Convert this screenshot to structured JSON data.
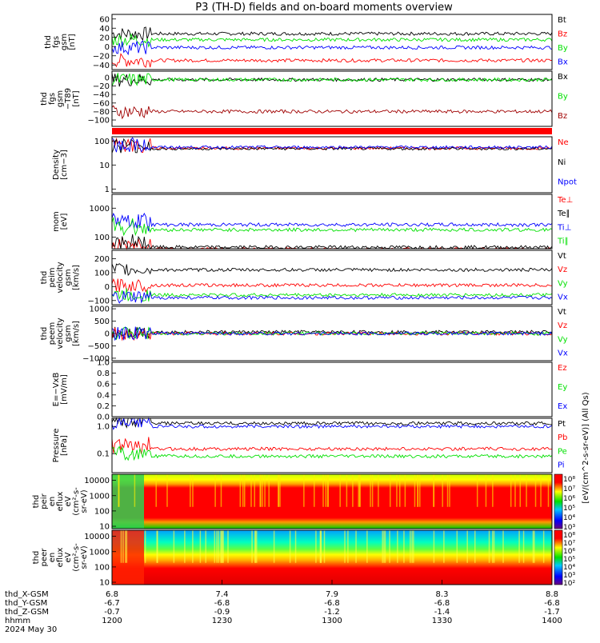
{
  "title": "P3 (TH-D) fields and on-board moments overview",
  "time_axis": {
    "tick_times": [
      "1200",
      "1230",
      "1300",
      "1330",
      "1400"
    ],
    "rows": [
      {
        "label": "thd_X-GSM",
        "values": [
          "6.8",
          "7.4",
          "7.9",
          "8.3",
          "8.8"
        ]
      },
      {
        "label": "thd_Y-GSM",
        "values": [
          "-6.7",
          "-6.8",
          "-6.8",
          "-6.8",
          "-6.8"
        ]
      },
      {
        "label": "thd_Z-GSM",
        "values": [
          "-0.7",
          "-0.9",
          "-1.2",
          "-1.4",
          "-1.7"
        ]
      },
      {
        "label": "hhmm",
        "values": [
          "1200",
          "1230",
          "1300",
          "1330",
          "1400"
        ]
      }
    ],
    "date": "2024 May 30"
  },
  "colors": {
    "black": "#000000",
    "red": "#ff0000",
    "green": "#00e000",
    "blue": "#0000ff",
    "darkred": "#a00000"
  },
  "colorbar_label": "[eV/(cm^2-s-sr-eV)] (All Qs)",
  "chart_data": [
    {
      "type": "line",
      "panel": "fgs",
      "ylabel": [
        "thd",
        "fgs",
        "gsm",
        "[nT]"
      ],
      "yticks": [
        "60",
        "40",
        "20",
        "0",
        "−20",
        "−40"
      ],
      "ylim": [
        -50,
        70
      ],
      "series": [
        {
          "name": "Bt",
          "color": "#000000",
          "steady": 28
        },
        {
          "name": "Bz",
          "color": "#ff0000",
          "steady": -30
        },
        {
          "name": "By",
          "color": "#00e000",
          "steady": 15
        },
        {
          "name": "Bx",
          "color": "#0000ff",
          "steady": -2
        }
      ]
    },
    {
      "type": "line",
      "panel": "fgs-t89",
      "ylabel": [
        "thd",
        "fgs",
        "gsm",
        "−T89",
        "[nT]"
      ],
      "yticks": [
        "0",
        "−20",
        "−40",
        "−60",
        "−80",
        "−100"
      ],
      "ylim": [
        -115,
        15
      ],
      "series": [
        {
          "name": "Bx",
          "color": "#000000",
          "steady": -5
        },
        {
          "name": "By",
          "color": "#00e000",
          "steady": -5
        },
        {
          "name": "Bz",
          "color": "#a00000",
          "steady": -80
        }
      ]
    },
    {
      "type": "line",
      "panel": "density",
      "ylabel": [
        "Density",
        "[cm−3]"
      ],
      "yticks": [
        "100",
        "10",
        "1"
      ],
      "log": true,
      "ylim": [
        0.7,
        150
      ],
      "series": [
        {
          "name": "Ne",
          "color": "#ff0000",
          "steady": 50
        },
        {
          "name": "Ni",
          "color": "#000000",
          "steady": 48
        },
        {
          "name": "Npot",
          "color": "#0000ff",
          "steady": 55
        }
      ]
    },
    {
      "type": "line",
      "panel": "temperature",
      "ylabel": [
        "mom",
        "[eV]"
      ],
      "yticks": [
        "1000",
        "100"
      ],
      "log": true,
      "ylim": [
        40,
        3000
      ],
      "series": [
        {
          "name": "Te⊥",
          "color": "#ff0000",
          "steady": 38
        },
        {
          "name": "Te∥",
          "color": "#000000",
          "steady": 45
        },
        {
          "name": "Ti⊥",
          "color": "#0000ff",
          "steady": 270
        },
        {
          "name": "Ti∥",
          "color": "#00e000",
          "steady": 180
        }
      ]
    },
    {
      "type": "line",
      "panel": "peim",
      "ylabel": [
        "thd",
        "peim",
        "velocity",
        "gsm",
        "[km/s]"
      ],
      "yticks": [
        "200",
        "100",
        "0",
        "−100"
      ],
      "ylim": [
        -130,
        260
      ],
      "series": [
        {
          "name": "Vt",
          "color": "#000000",
          "steady": 120
        },
        {
          "name": "Vz",
          "color": "#ff0000",
          "steady": 10
        },
        {
          "name": "Vy",
          "color": "#00e000",
          "steady": -60
        },
        {
          "name": "Vx",
          "color": "#0000ff",
          "steady": -80
        }
      ]
    },
    {
      "type": "line",
      "panel": "peem",
      "ylabel": [
        "thd",
        "peem",
        "velocity",
        "gsm",
        "[km/s]"
      ],
      "yticks": [
        "1000",
        "500",
        "0",
        "−500",
        "−1000"
      ],
      "ylim": [
        -1100,
        1100
      ],
      "series": [
        {
          "name": "Vt",
          "color": "#000000",
          "steady": 60
        },
        {
          "name": "Vz",
          "color": "#ff0000",
          "steady": 0
        },
        {
          "name": "Vy",
          "color": "#00e000",
          "steady": 0
        },
        {
          "name": "Vx",
          "color": "#0000ff",
          "steady": 0
        }
      ]
    },
    {
      "type": "line",
      "panel": "efield",
      "ylabel": [
        "E=−VxB",
        "[mV/m]"
      ],
      "yticks": [
        "1.0",
        "0.8",
        "0.6",
        "0.4",
        "0.2",
        "0.0"
      ],
      "ylim": [
        0,
        1
      ],
      "series": [
        {
          "name": "Ez",
          "color": "#ff0000"
        },
        {
          "name": "Ey",
          "color": "#00e000"
        },
        {
          "name": "Ex",
          "color": "#0000ff"
        }
      ]
    },
    {
      "type": "line",
      "panel": "pressure",
      "ylabel": [
        "Pressure",
        "[nPa]"
      ],
      "yticks": [
        "1.0",
        "0.1"
      ],
      "log": true,
      "ylim": [
        0.02,
        2
      ],
      "series": [
        {
          "name": "Pt",
          "color": "#000000",
          "steady": 1.3
        },
        {
          "name": "Pb",
          "color": "#ff0000",
          "steady": 0.15
        },
        {
          "name": "Pe",
          "color": "#00e000",
          "steady": 0.08
        },
        {
          "name": "Pi",
          "color": "#0000ff",
          "steady": 1.0
        }
      ]
    },
    {
      "type": "heatmap",
      "panel": "peir",
      "ylabel": [
        "thd",
        "peir",
        "en",
        "eflux",
        "eV",
        "(cm²-s-",
        "sr-eV)"
      ],
      "yticks": [
        "10000",
        "1000",
        "100",
        "10"
      ],
      "log": true,
      "ylim": [
        7,
        25000
      ],
      "colorbar_ticks": [
        "10⁸",
        "10⁷",
        "10⁶",
        "10⁵",
        "10⁴",
        "10³"
      ]
    },
    {
      "type": "heatmap",
      "panel": "peer",
      "ylabel": [
        "thd",
        "peer",
        "en",
        "eflux",
        "eV",
        "(cm²-s-",
        "sr-eV)"
      ],
      "yticks": [
        "10000",
        "1000",
        "100",
        "10"
      ],
      "log": true,
      "ylim": [
        7,
        25000
      ],
      "colorbar_ticks": [
        "10⁸",
        "10⁷",
        "10⁶",
        "10⁵",
        "10⁴",
        "10³",
        "10²"
      ]
    }
  ]
}
